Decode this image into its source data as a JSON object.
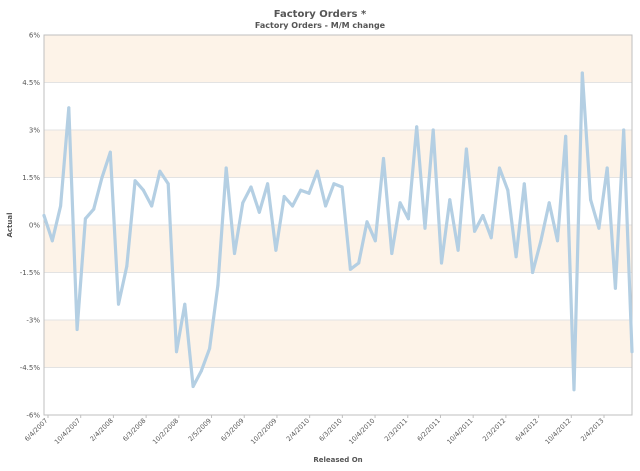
{
  "chart_data": {
    "type": "line",
    "title": "Factory Orders *",
    "subtitle": "Factory Orders - M/M change",
    "xlabel": "Released On",
    "ylabel": "Actual",
    "ylim": [
      -6,
      6
    ],
    "y_ticks": [
      "6%",
      "4.5%",
      "3%",
      "1.5%",
      "0%",
      "-1.5%",
      "-3%",
      "-4.5%",
      "-6%"
    ],
    "x_ticks": [
      "6/4/2007",
      "10/4/2007",
      "2/4/2008",
      "6/3/2008",
      "10/2/2008",
      "2/5/2009",
      "6/3/2009",
      "10/2/2009",
      "2/4/2010",
      "6/3/2010",
      "10/4/2010",
      "2/3/2011",
      "6/2/2011",
      "10/4/2011",
      "2/3/2012",
      "6/4/2012",
      "10/4/2012",
      "2/4/2013"
    ],
    "grid": true,
    "band_color": "#fdf3e8",
    "line_color": "#b4cfe3",
    "series": [
      {
        "values": [
          0.3,
          -0.5,
          0.6,
          3.7,
          -3.3,
          0.2,
          0.5,
          1.5,
          2.3,
          -2.5,
          -1.3,
          1.4,
          1.1,
          0.6,
          1.7,
          1.3,
          -4.0,
          -2.5,
          -5.1,
          -4.6,
          -3.9,
          -1.9,
          1.8,
          -0.9,
          0.7,
          1.2,
          0.4,
          1.3,
          -0.8,
          0.9,
          0.6,
          1.1,
          1.0,
          1.7,
          0.6,
          1.3,
          1.2,
          -1.4,
          -1.2,
          0.1,
          -0.5,
          2.1,
          -0.9,
          0.7,
          0.2,
          3.1,
          -0.1,
          3.0,
          -1.2,
          0.8,
          -0.8,
          2.4,
          -0.2,
          0.3,
          -0.4,
          1.8,
          1.1,
          -1.0,
          1.3,
          -1.5,
          -0.5,
          0.7,
          -0.5,
          2.8,
          -5.2,
          4.8,
          0.8,
          -0.1,
          1.8,
          -2.0,
          3.0,
          -4.0
        ]
      }
    ]
  }
}
